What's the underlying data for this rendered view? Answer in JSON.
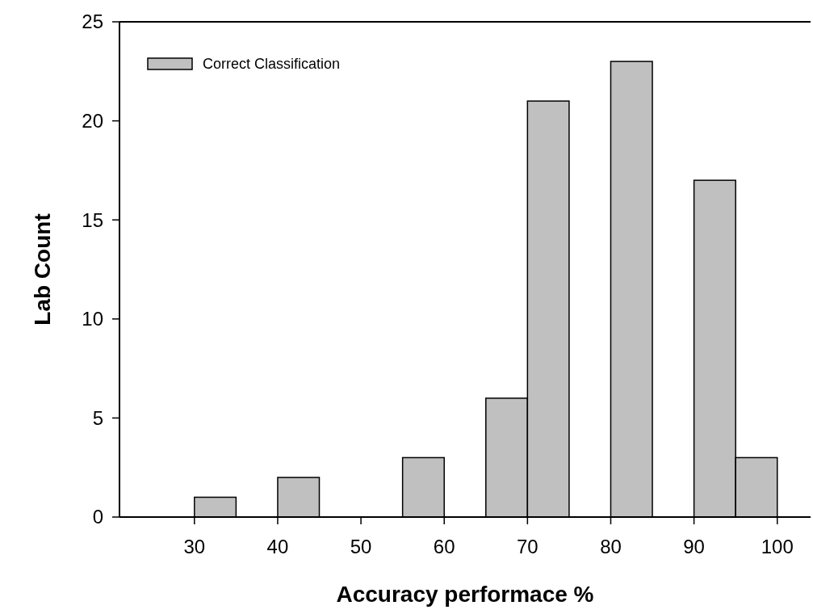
{
  "chart_data": {
    "type": "histogram",
    "xlabel": "Accuracy performace %",
    "ylabel": "Lab Count",
    "bins": [
      30,
      35,
      40,
      45,
      50,
      55,
      60,
      65,
      70,
      75,
      80,
      85,
      90,
      95,
      100
    ],
    "series": [
      {
        "name": "Correct Classification",
        "color": "#c0c0c0",
        "values": [
          1,
          0,
          2,
          0,
          0,
          3,
          0,
          6,
          21,
          0,
          23,
          0,
          17,
          3
        ]
      }
    ],
    "xlim": [
      21,
      104
    ],
    "xticks": [
      30,
      40,
      50,
      60,
      70,
      80,
      90,
      100
    ],
    "ylim": [
      0,
      25
    ],
    "yticks": [
      0,
      5,
      10,
      15,
      20,
      25
    ],
    "legend": "top left",
    "grid": false
  }
}
